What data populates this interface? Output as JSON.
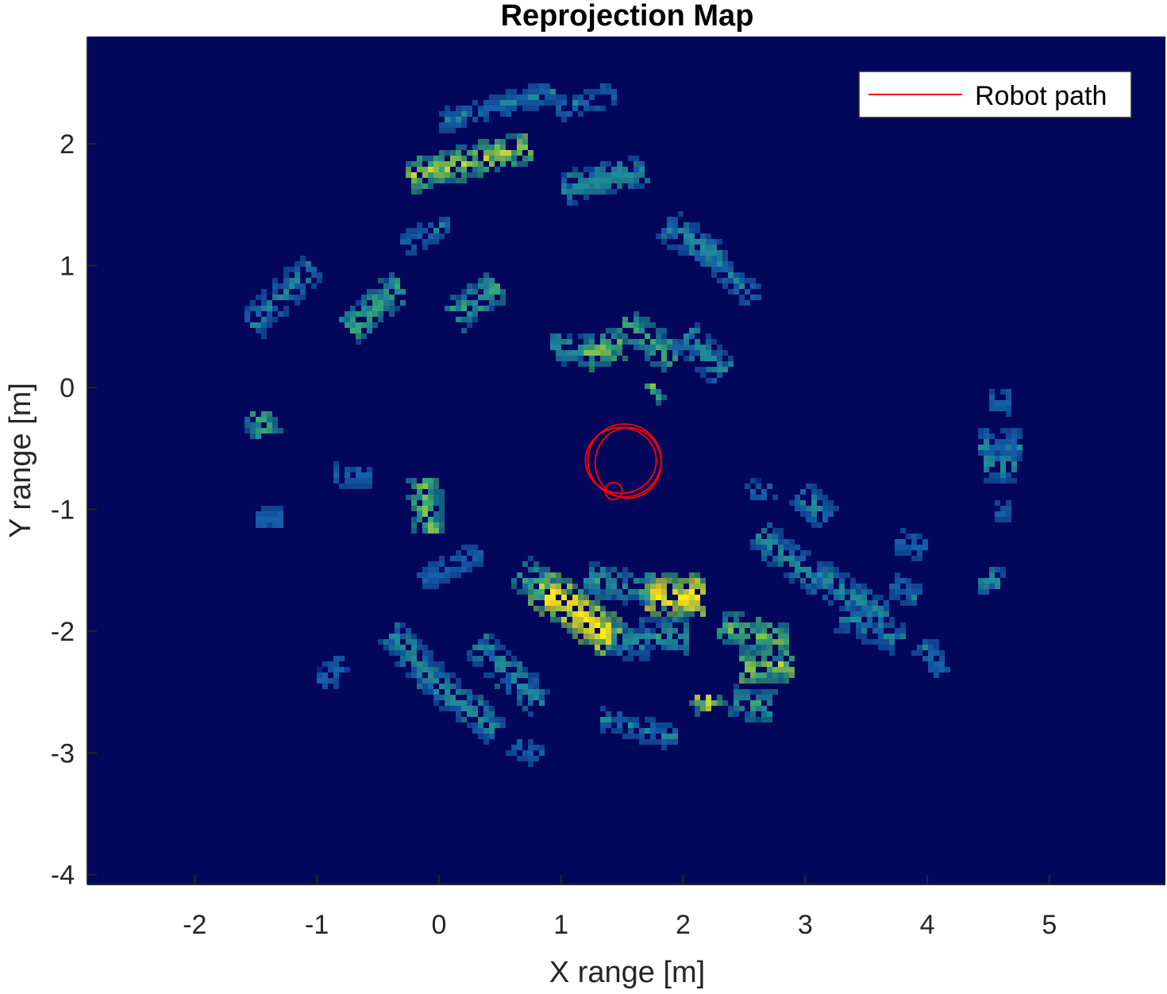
{
  "chart_data": {
    "type": "heatmap",
    "title": "Reprojection Map",
    "xlabel": "X range [m]",
    "ylabel": "Y range [m]",
    "xlim": [
      -2.88,
      5.95
    ],
    "ylim": [
      -4.08,
      2.88
    ],
    "xticks": [
      -2,
      -1,
      0,
      1,
      2,
      3,
      4,
      5
    ],
    "xtick_labels": [
      "-2",
      "-1",
      "0",
      "1",
      "2",
      "3",
      "4",
      "5"
    ],
    "yticks": [
      -4,
      -3,
      -2,
      -1,
      0,
      1,
      2
    ],
    "ytick_labels": [
      "-4",
      "-3",
      "-2",
      "-1",
      "0",
      "1",
      "2"
    ],
    "grid": false,
    "background_color": "#02075c",
    "colormap": [
      "#0a2fa0",
      "#1560a8",
      "#1f8a9a",
      "#35a878",
      "#7fc24e",
      "#c9d43a",
      "#ffe81a"
    ],
    "legend": {
      "position": "top-right",
      "entries": [
        {
          "label": "Robot path",
          "color": "#ff0000"
        }
      ]
    },
    "heat_segments": [
      {
        "x1": -0.25,
        "y1": 1.75,
        "x2": 0.7,
        "y2": 2.0,
        "intensity": 0.62
      },
      {
        "x1": 0.0,
        "y1": 2.2,
        "x2": 0.9,
        "y2": 2.45,
        "intensity": 0.22
      },
      {
        "x1": 1.0,
        "y1": 1.65,
        "x2": 1.65,
        "y2": 1.8,
        "intensity": 0.3
      },
      {
        "x1": 0.95,
        "y1": 2.3,
        "x2": 1.4,
        "y2": 2.42,
        "intensity": 0.2
      },
      {
        "x1": -0.3,
        "y1": 1.2,
        "x2": 0.05,
        "y2": 1.35,
        "intensity": 0.22
      },
      {
        "x1": -0.75,
        "y1": 0.5,
        "x2": -0.35,
        "y2": 0.85,
        "intensity": 0.45
      },
      {
        "x1": -1.55,
        "y1": 0.55,
        "x2": -1.05,
        "y2": 1.0,
        "intensity": 0.25
      },
      {
        "x1": 0.1,
        "y1": 0.6,
        "x2": 0.45,
        "y2": 0.85,
        "intensity": 0.4
      },
      {
        "x1": 1.2,
        "y1": 0.3,
        "x2": 1.45,
        "y2": 0.38,
        "intensity": 0.55
      },
      {
        "x1": 0.9,
        "y1": 0.35,
        "x2": 1.2,
        "y2": 0.32,
        "intensity": 0.35
      },
      {
        "x1": 1.5,
        "y1": 0.55,
        "x2": 1.9,
        "y2": 0.25,
        "intensity": 0.45
      },
      {
        "x1": 2.0,
        "y1": 0.45,
        "x2": 2.3,
        "y2": 0.15,
        "intensity": 0.3
      },
      {
        "x1": 2.1,
        "y1": 1.2,
        "x2": 2.45,
        "y2": 0.85,
        "intensity": 0.22
      },
      {
        "x1": 1.85,
        "y1": 1.35,
        "x2": 2.25,
        "y2": 1.1,
        "intensity": 0.28
      },
      {
        "x1": 2.5,
        "y1": 0.85,
        "x2": 2.55,
        "y2": 0.75,
        "intensity": 0.18
      },
      {
        "x1": -1.5,
        "y1": -0.2,
        "x2": -1.45,
        "y2": -0.35,
        "intensity": 0.45
      },
      {
        "x1": -0.15,
        "y1": -0.75,
        "x2": -0.1,
        "y2": -1.15,
        "intensity": 0.55
      },
      {
        "x1": 0.8,
        "y1": -1.6,
        "x2": 1.4,
        "y2": -2.05,
        "intensity": 0.93
      },
      {
        "x1": 0.65,
        "y1": -1.5,
        "x2": 0.85,
        "y2": -1.62,
        "intensity": 0.45
      },
      {
        "x1": 1.7,
        "y1": -1.68,
        "x2": 2.15,
        "y2": -1.7,
        "intensity": 0.97
      },
      {
        "x1": 1.2,
        "y1": -1.55,
        "x2": 1.7,
        "y2": -1.65,
        "intensity": 0.35
      },
      {
        "x1": 2.3,
        "y1": -1.95,
        "x2": 2.8,
        "y2": -2.05,
        "intensity": 0.55
      },
      {
        "x1": 2.45,
        "y1": -2.3,
        "x2": 2.85,
        "y2": -2.25,
        "intensity": 0.62
      },
      {
        "x1": 2.4,
        "y1": -2.55,
        "x2": 2.7,
        "y2": -2.6,
        "intensity": 0.38
      },
      {
        "x1": 1.65,
        "y1": -2.0,
        "x2": 2.0,
        "y2": -2.02,
        "intensity": 0.35
      },
      {
        "x1": 1.4,
        "y1": -2.05,
        "x2": 1.7,
        "y2": -2.1,
        "intensity": 0.3
      },
      {
        "x1": 2.6,
        "y1": -1.2,
        "x2": 3.15,
        "y2": -1.6,
        "intensity": 0.3
      },
      {
        "x1": 2.95,
        "y1": -0.85,
        "x2": 3.15,
        "y2": -1.05,
        "intensity": 0.25
      },
      {
        "x1": 3.05,
        "y1": -1.5,
        "x2": 3.6,
        "y2": -1.85,
        "intensity": 0.28
      },
      {
        "x1": 3.3,
        "y1": -1.85,
        "x2": 3.75,
        "y2": -2.05,
        "intensity": 0.25
      },
      {
        "x1": 3.7,
        "y1": -1.6,
        "x2": 3.9,
        "y2": -1.7,
        "intensity": 0.22
      },
      {
        "x1": 3.75,
        "y1": -1.25,
        "x2": 3.95,
        "y2": -1.3,
        "intensity": 0.2
      },
      {
        "x1": 3.95,
        "y1": -2.1,
        "x2": 4.1,
        "y2": -2.3,
        "intensity": 0.2
      },
      {
        "x1": 4.45,
        "y1": -1.55,
        "x2": 4.55,
        "y2": -1.6,
        "intensity": 0.3
      },
      {
        "x1": 4.4,
        "y1": -0.45,
        "x2": 4.75,
        "y2": -0.45,
        "intensity": 0.25
      },
      {
        "x1": 4.45,
        "y1": -0.62,
        "x2": 4.7,
        "y2": -0.62,
        "intensity": 0.3
      },
      {
        "x1": 4.5,
        "y1": -0.08,
        "x2": 4.65,
        "y2": -0.1,
        "intensity": 0.18
      },
      {
        "x1": 4.55,
        "y1": -1.0,
        "x2": 4.65,
        "y2": -1.0,
        "intensity": 0.15
      },
      {
        "x1": -0.4,
        "y1": -2.0,
        "x2": -0.05,
        "y2": -2.4,
        "intensity": 0.3
      },
      {
        "x1": -0.05,
        "y1": -2.4,
        "x2": 0.45,
        "y2": -2.8,
        "intensity": 0.3
      },
      {
        "x1": 0.3,
        "y1": -2.1,
        "x2": 0.8,
        "y2": -2.55,
        "intensity": 0.3
      },
      {
        "x1": 0.6,
        "y1": -2.9,
        "x2": 0.8,
        "y2": -3.0,
        "intensity": 0.2
      },
      {
        "x1": 1.3,
        "y1": -2.7,
        "x2": 1.9,
        "y2": -2.85,
        "intensity": 0.22
      },
      {
        "x1": -1.0,
        "y1": -2.4,
        "x2": -0.8,
        "y2": -2.25,
        "intensity": 0.15
      },
      {
        "x1": -1.5,
        "y1": -1.05,
        "x2": -1.3,
        "y2": -1.05,
        "intensity": 0.15
      },
      {
        "x1": -0.85,
        "y1": -0.7,
        "x2": -0.6,
        "y2": -0.72,
        "intensity": 0.15
      },
      {
        "x1": -0.15,
        "y1": -1.55,
        "x2": 0.3,
        "y2": -1.35,
        "intensity": 0.15
      },
      {
        "x1": 1.72,
        "y1": 0.0,
        "x2": 1.75,
        "y2": 0.02,
        "intensity": 0.5
      },
      {
        "x1": 2.55,
        "y1": -0.85,
        "x2": 2.7,
        "y2": -0.8,
        "intensity": 0.15
      },
      {
        "x1": 2.15,
        "y1": -2.5,
        "x2": 2.2,
        "y2": -2.6,
        "intensity": 0.7
      }
    ],
    "robot_path": {
      "color": "#ff0000",
      "loops": [
        {
          "cx": 1.52,
          "cy": -0.6,
          "rx": 0.3,
          "ry": 0.3
        },
        {
          "cx": 1.55,
          "cy": -0.62,
          "rx": 0.27,
          "ry": 0.29
        },
        {
          "cx": 1.49,
          "cy": -0.6,
          "rx": 0.29,
          "ry": 0.27
        },
        {
          "cx": 1.43,
          "cy": -0.85,
          "rx": 0.07,
          "ry": 0.07
        }
      ]
    }
  }
}
